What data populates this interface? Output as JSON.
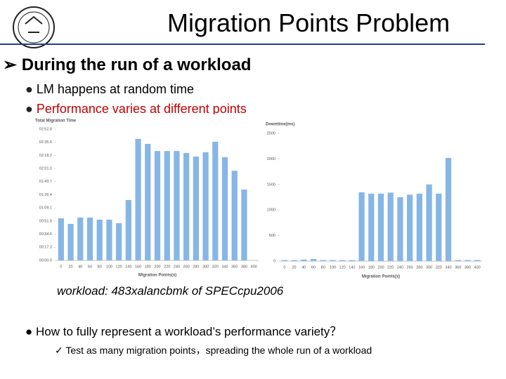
{
  "title": "Migration Points Problem",
  "heading": "During the run of a workload",
  "bullets": [
    "LM happens at random time",
    "Performance varies at different points"
  ],
  "caption": "workload: 483xalancbmk of SPECcpu2006",
  "question": "How to fully represent a workload’s performance variety？",
  "answer": "Test as many migration points，spreading the whole run of a workload",
  "chart_data": [
    {
      "type": "bar",
      "title": "Total Migration Time",
      "x_label": "Migration Points(s)",
      "color": "#86b6e6",
      "categories": [
        "0",
        "20",
        "40",
        "60",
        "80",
        "100",
        "120",
        "140",
        "160",
        "180",
        "200",
        "220",
        "240",
        "260",
        "280",
        "300",
        "320",
        "340",
        "360",
        "380",
        "400"
      ],
      "values": [
        55.4,
        48,
        56.4,
        56.4,
        53.6,
        53.6,
        49,
        79.5,
        160,
        153.4,
        144,
        144,
        144,
        141.4,
        136.7,
        142.3,
        156.2,
        135.8,
        118,
        93.3,
        null
      ],
      "ylim": [
        0,
        172.8
      ],
      "yticks": [
        {
          "value": 0,
          "label": "00:00.0"
        },
        {
          "value": 17.3,
          "label": "00:17.3"
        },
        {
          "value": 34.6,
          "label": "00:34.6"
        },
        {
          "value": 51.8,
          "label": "00:51.8"
        },
        {
          "value": 69.1,
          "label": "01:09.1"
        },
        {
          "value": 86.4,
          "label": "01:26.4"
        },
        {
          "value": 103.7,
          "label": "01:43.7"
        },
        {
          "value": 121.0,
          "label": "02:01.0"
        },
        {
          "value": 138.2,
          "label": "02:18.2"
        },
        {
          "value": 155.5,
          "label": "02:35.5"
        },
        {
          "value": 172.8,
          "label": "02:52.8"
        }
      ]
    },
    {
      "type": "bar",
      "title": "Downtime(ms)",
      "x_label": "Migration Points(s)",
      "color": "#86b6e6",
      "categories": [
        "0",
        "20",
        "40",
        "60",
        "80",
        "100",
        "120",
        "140",
        "160",
        "180",
        "200",
        "220",
        "240",
        "260",
        "280",
        "300",
        "320",
        "340",
        "360",
        "380",
        "400"
      ],
      "values": [
        20,
        20,
        30,
        40,
        20,
        20,
        20,
        20,
        1346,
        1320,
        1320,
        1340,
        1250,
        1300,
        1320,
        1500,
        1320,
        2020,
        20,
        20,
        20
      ],
      "ylim": [
        0,
        2500
      ],
      "yticks": [
        0,
        500,
        1000,
        1500,
        2000,
        2500
      ]
    }
  ]
}
